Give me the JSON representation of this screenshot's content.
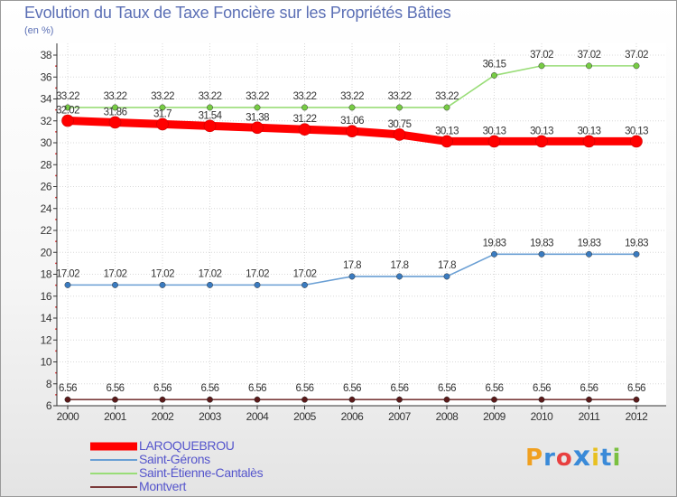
{
  "header": {
    "title": "Evolution du Taux de Taxe Foncière sur les Propriétés Bâties",
    "unit": "(en %)"
  },
  "logo": {
    "text": "Proxiti",
    "letter_colors": [
      "#f0a020",
      "#3a8ad8",
      "#e84040",
      "#3a8ad8",
      "#e8c020",
      "#3a8ad8",
      "#7ac040"
    ]
  },
  "chart_data": {
    "type": "line",
    "title": "Evolution du Taux de Taxe Foncière sur les Propriétés Bâties",
    "ylabel": "(en %)",
    "xlabel": "",
    "x": [
      "2000",
      "2001",
      "2002",
      "2003",
      "2004",
      "2005",
      "2006",
      "2007",
      "2008",
      "2009",
      "2010",
      "2011",
      "2012"
    ],
    "ylim": [
      6,
      38
    ],
    "yticks": [
      6,
      8,
      10,
      12,
      14,
      16,
      18,
      20,
      22,
      24,
      26,
      28,
      30,
      32,
      34,
      36,
      38
    ],
    "grid": true,
    "legend_position": "bottom-left",
    "series": [
      {
        "name": "LAROQUEBROU",
        "color": "#ff0000",
        "point_color": "#ff0000",
        "emphasis": true,
        "values": [
          32.02,
          31.86,
          31.7,
          31.54,
          31.38,
          31.22,
          31.06,
          30.75,
          30.13,
          30.13,
          30.13,
          30.13,
          30.13
        ],
        "labels": [
          "32.02",
          "31.86",
          "31.7",
          "31.54",
          "31.38",
          "31.22",
          "31.06",
          "30.75",
          "30.13",
          "30.13",
          "30.13",
          "30.13",
          "30.13"
        ]
      },
      {
        "name": "Saint-Gérons",
        "color": "#6a9fd4",
        "point_color": "#3a7bc0",
        "emphasis": false,
        "values": [
          17.02,
          17.02,
          17.02,
          17.02,
          17.02,
          17.02,
          17.8,
          17.8,
          17.8,
          19.83,
          19.83,
          19.83,
          19.83
        ],
        "labels": [
          "17.02",
          "17.02",
          "17.02",
          "17.02",
          "17.02",
          "17.02",
          "17.8",
          "17.8",
          "17.8",
          "19.83",
          "19.83",
          "19.83",
          "19.83"
        ]
      },
      {
        "name": "Saint-Étienne-Cantalès",
        "color": "#99dd77",
        "point_color": "#77cc44",
        "emphasis": false,
        "values": [
          33.22,
          33.22,
          33.22,
          33.22,
          33.22,
          33.22,
          33.22,
          33.22,
          33.22,
          36.15,
          37.02,
          37.02,
          37.02
        ],
        "labels": [
          "33.22",
          "33.22",
          "33.22",
          "33.22",
          "33.22",
          "33.22",
          "33.22",
          "33.22",
          "33.22",
          "36.15",
          "37.02",
          "37.02",
          "37.02"
        ]
      },
      {
        "name": "Montvert",
        "color": "#7a3a3a",
        "point_color": "#5a1a1a",
        "emphasis": false,
        "values": [
          6.56,
          6.56,
          6.56,
          6.56,
          6.56,
          6.56,
          6.56,
          6.56,
          6.56,
          6.56,
          6.56,
          6.56,
          6.56
        ],
        "labels": [
          "6.56",
          "6.56",
          "6.56",
          "6.56",
          "6.56",
          "6.56",
          "6.56",
          "6.56",
          "6.56",
          "6.56",
          "6.56",
          "6.56",
          "6.56"
        ]
      }
    ]
  }
}
